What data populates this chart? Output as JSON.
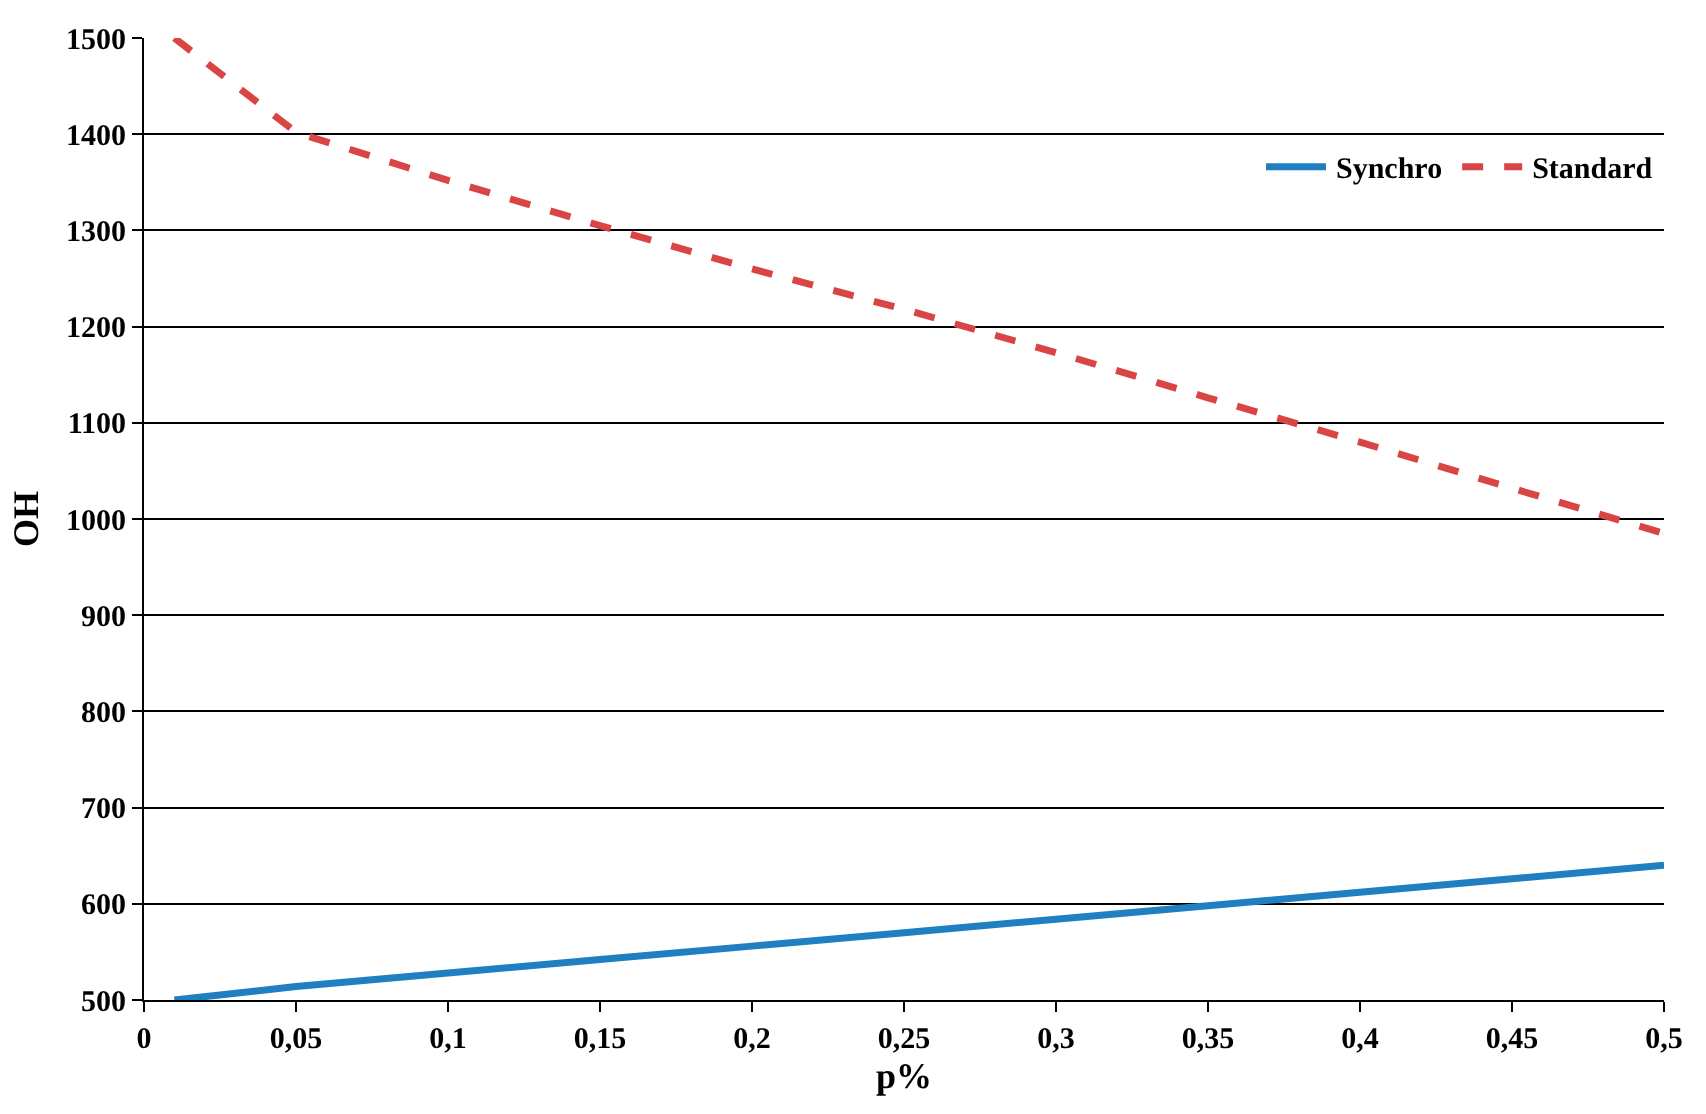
{
  "chart_data": {
    "type": "line",
    "xlabel": "p%",
    "ylabel": "OH",
    "x": [
      0.01,
      0.05,
      0.1,
      0.15,
      0.2,
      0.25,
      0.3,
      0.35,
      0.4,
      0.45,
      0.5
    ],
    "series": [
      {
        "name": "Synchro",
        "color": "#1f7fc0",
        "line_style": "solid",
        "values": [
          500,
          514,
          528,
          542,
          556,
          570,
          584,
          598,
          612,
          626,
          640
        ]
      },
      {
        "name": "Standard",
        "color": "#d94545",
        "line_style": "dashed",
        "values": [
          1500,
          1402,
          1352,
          1305,
          1260,
          1218,
          1173,
          1126,
          1080,
          1032,
          985
        ]
      }
    ],
    "xlim": [
      0,
      0.5
    ],
    "xticks": [
      0,
      {
        "value": 0.05,
        "label": "0,05"
      },
      {
        "value": 0.1,
        "label": "0,1"
      },
      {
        "value": 0.15,
        "label": "0,15"
      },
      {
        "value": 0.2,
        "label": "0,2"
      },
      {
        "value": 0.25,
        "label": "0,25"
      },
      {
        "value": 0.3,
        "label": "0,3"
      },
      {
        "value": 0.35,
        "label": "0,35"
      },
      {
        "value": 0.4,
        "label": "0,4"
      },
      {
        "value": 0.45,
        "label": "0,45"
      },
      {
        "value": 0.5,
        "label": "0,5"
      }
    ],
    "ylim": [
      500,
      1500
    ],
    "yticks": [
      500,
      600,
      700,
      800,
      900,
      1000,
      1100,
      1200,
      1300,
      1400,
      1500
    ],
    "grid": "y",
    "legend": "top right",
    "marker": "none"
  }
}
